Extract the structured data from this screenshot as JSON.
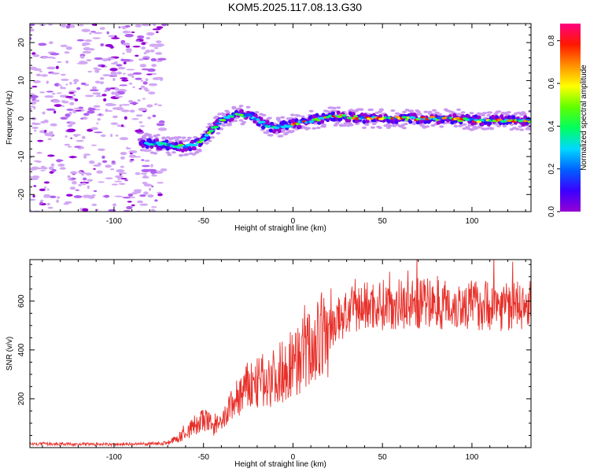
{
  "title": "KOM5.2025.117.08.13.G30",
  "chart_data": [
    {
      "type": "heatmap",
      "xlabel": "Height of straight line (km)",
      "ylabel": "Frequency (Hz)",
      "xlim": [
        -147,
        133
      ],
      "ylim": [
        -24.5,
        25
      ],
      "xticks": [
        -100,
        -50,
        0,
        50,
        100
      ],
      "yticks": [
        -20,
        -10,
        0,
        10,
        20
      ],
      "grid": false,
      "colorbar": {
        "label": "Normalized spectral amplitude",
        "range": [
          0,
          0.88
        ],
        "ticks": [
          0.0,
          0.2,
          0.4,
          0.6,
          0.8
        ],
        "colormap": [
          "#9400d3",
          "#3b00ff",
          "#0060ff",
          "#00d8ff",
          "#00ff60",
          "#60ff00",
          "#ffff00",
          "#ff9000",
          "#ff1800",
          "#ff0080"
        ]
      },
      "noise_region_x": [
        -147,
        -72
      ],
      "ridge": {
        "x": [
          -85,
          -80,
          -70,
          -60,
          -55,
          -50,
          -45,
          -40,
          -36,
          -33,
          -28,
          -22,
          -18,
          -14,
          -10,
          -5,
          0,
          10,
          20,
          30,
          40,
          50,
          60,
          70,
          80,
          90,
          100,
          110,
          120,
          133
        ],
        "y": [
          -6,
          -6.5,
          -7,
          -7.5,
          -7,
          -5.5,
          -3,
          -0.5,
          0.5,
          1,
          1,
          0.5,
          -1,
          -2,
          -2.5,
          -2,
          -1.5,
          -0.5,
          0.5,
          0.5,
          0,
          0,
          0,
          0,
          0,
          0,
          -0.5,
          -0.5,
          -0.5,
          -0.5
        ]
      }
    },
    {
      "type": "line",
      "xlabel": "Height of straight line (km)",
      "ylabel": "SNR (v/v)",
      "xlim": [
        -147,
        133
      ],
      "ylim": [
        0,
        770
      ],
      "xticks": [
        -100,
        -50,
        0,
        50,
        100
      ],
      "yticks": [
        200,
        400,
        600
      ],
      "grid": false,
      "color": "#e8302a",
      "series": [
        {
          "x": [
            -147,
            -120,
            -100,
            -80,
            -70,
            -65,
            -60,
            -55,
            -50,
            -45,
            -40,
            -35,
            -30,
            -25,
            -20,
            -15,
            -10,
            -5,
            0,
            5,
            10,
            15,
            20,
            25,
            30,
            35,
            40,
            50,
            60,
            70,
            80,
            90,
            100,
            110,
            120,
            133
          ],
          "y": [
            15,
            14,
            13,
            15,
            20,
            35,
            60,
            90,
            110,
            95,
            90,
            170,
            210,
            250,
            260,
            280,
            290,
            320,
            350,
            380,
            410,
            440,
            480,
            520,
            550,
            565,
            580,
            585,
            590,
            590,
            590,
            585,
            585,
            585,
            580,
            580
          ]
        }
      ]
    }
  ]
}
